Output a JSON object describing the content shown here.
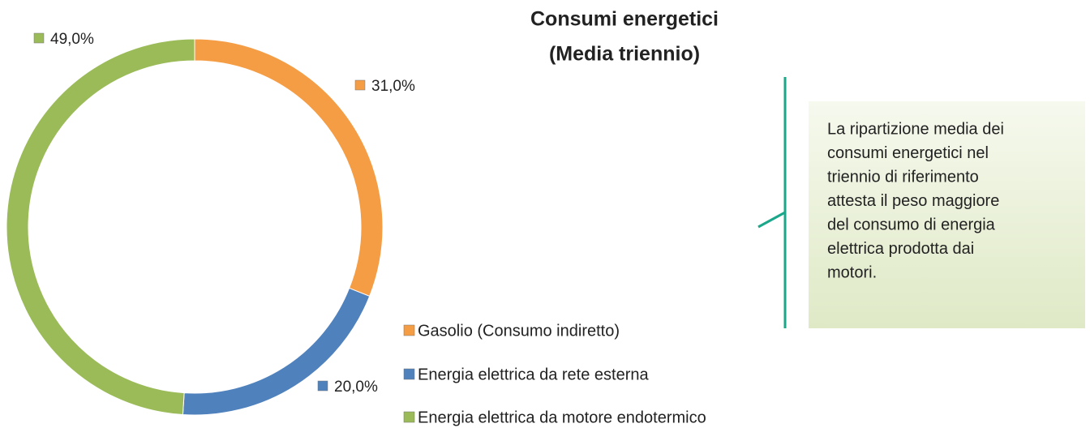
{
  "chart_data": {
    "type": "donut",
    "title": [
      "Consumi energetici",
      "(Media triennio)"
    ],
    "categories": [
      "Gasolio (Consumo indiretto)",
      "Energia elettrica da rete esterna",
      "Energia elettrica da motore endotermico"
    ],
    "values": [
      31,
      20,
      49
    ],
    "value_labels": [
      "31,0%",
      "20,0%",
      "49,0%"
    ],
    "colors": [
      "#f59d45",
      "#4f81bd",
      "#9bbb59"
    ],
    "annotation": [
      "La ripartizione media dei",
      "consumi energetici nel",
      "triennio di riferimento",
      "attesta il peso maggiore",
      "del consumo di energia",
      "elettrica prodotta dai",
      "motori."
    ]
  }
}
